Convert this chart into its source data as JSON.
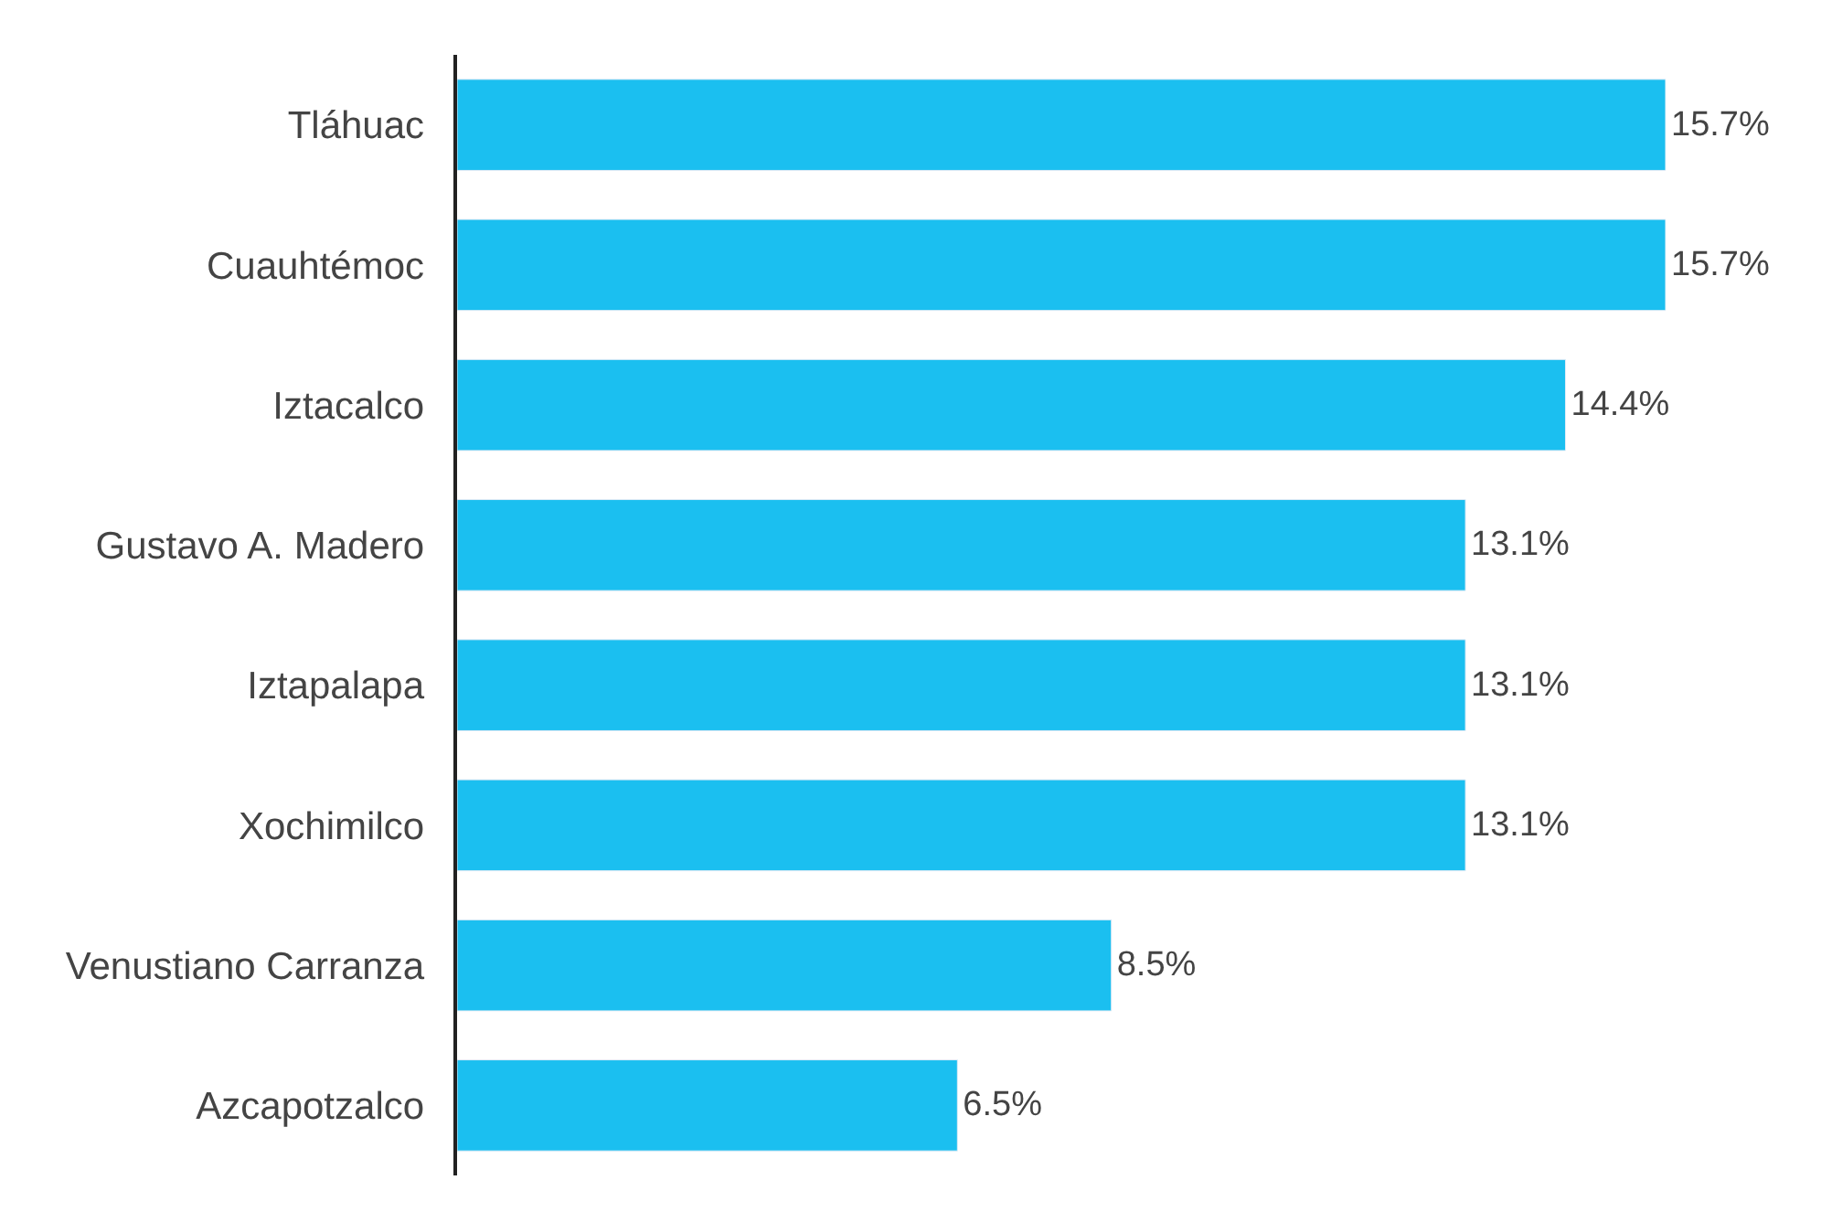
{
  "chart_data": {
    "type": "bar",
    "orientation": "horizontal",
    "categories": [
      "Tláhuac",
      "Cuauhtémoc",
      "Iztacalco",
      "Gustavo A. Madero",
      "Iztapalapa",
      "Xochimilco",
      "Venustiano Carranza",
      "Azcapotzalco"
    ],
    "values": [
      15.7,
      15.7,
      14.4,
      13.1,
      13.1,
      13.1,
      8.5,
      6.5
    ],
    "value_labels": [
      "15.7%",
      "15.7%",
      "14.4%",
      "13.1%",
      "13.1%",
      "13.1%",
      "8.5%",
      "6.5%"
    ],
    "color": "#1bbff0"
  }
}
